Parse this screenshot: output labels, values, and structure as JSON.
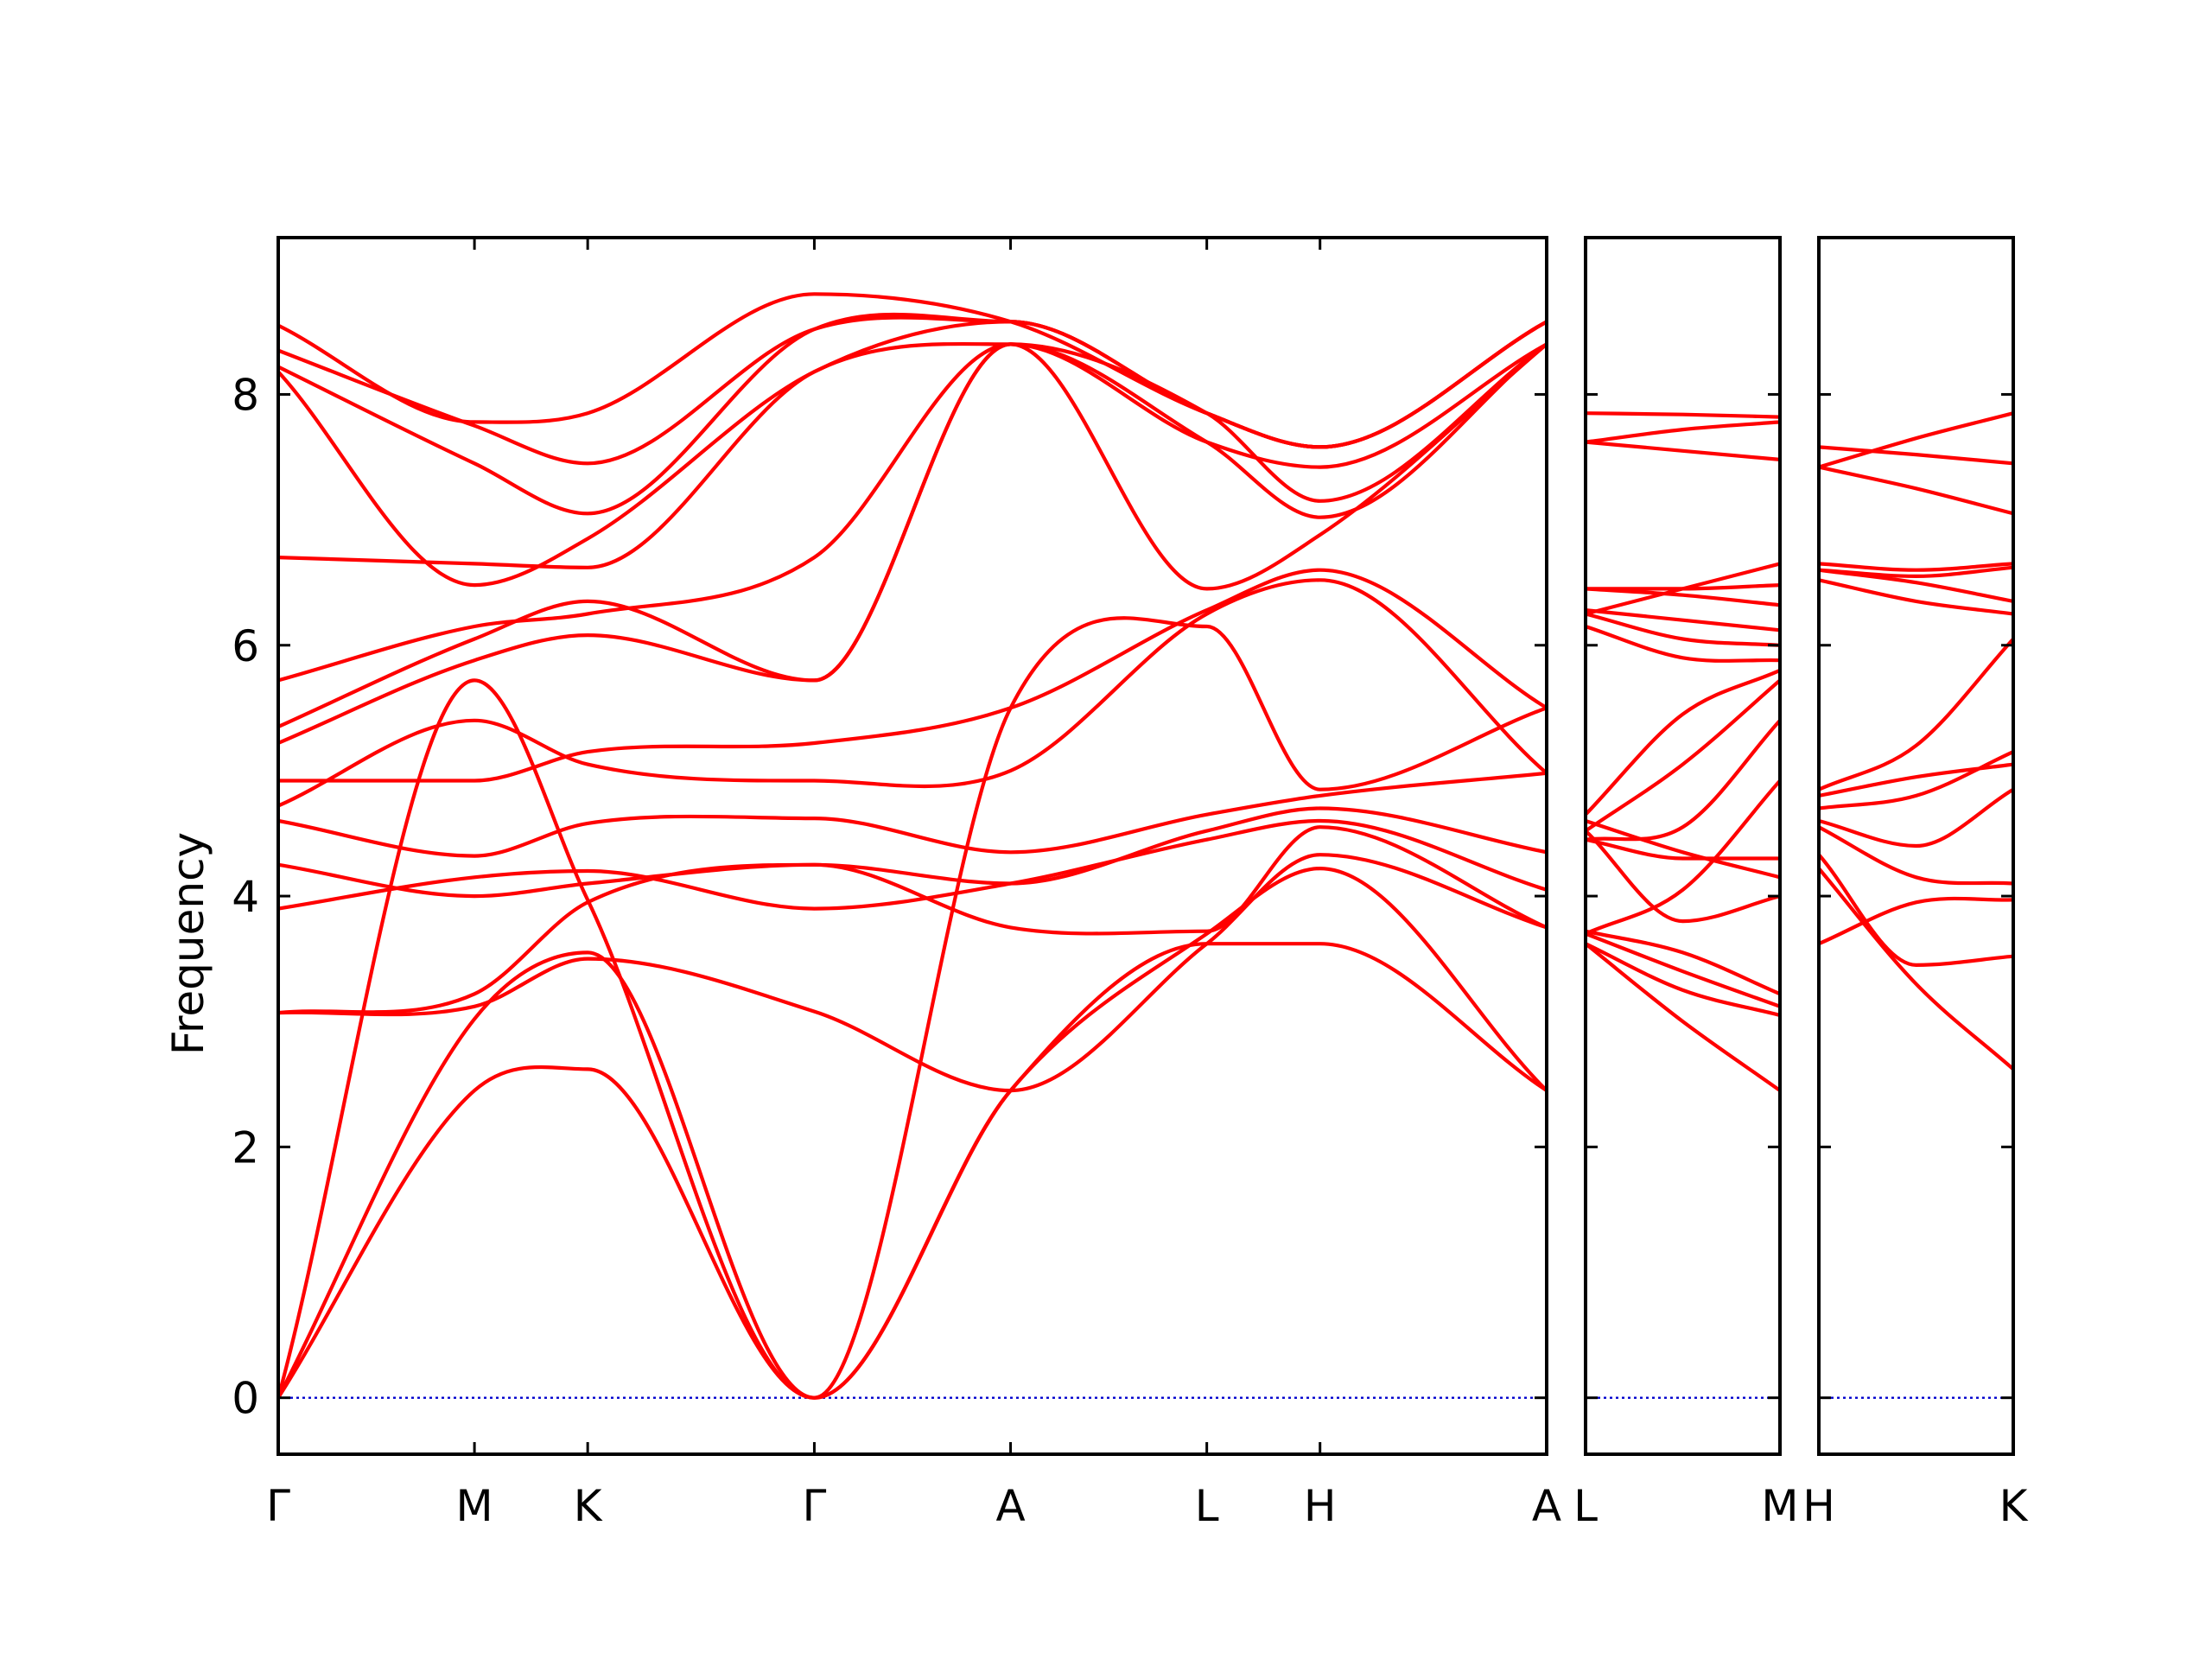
{
  "chart_data": {
    "type": "line",
    "ylabel": "Frequency",
    "ylim": [
      -0.45,
      9.25
    ],
    "yticks": [
      0,
      2,
      4,
      6,
      8
    ],
    "grid": false,
    "line_color": "#ff0000",
    "zero_line_color": "#0000cc",
    "panels": [
      {
        "xticks": [
          {
            "x": 0,
            "label": "Γ"
          },
          {
            "x": 1,
            "label": "M"
          },
          {
            "x": 1.577,
            "label": "K"
          },
          {
            "x": 2.732,
            "label": "Γ"
          },
          {
            "x": 3.732,
            "label": "A"
          },
          {
            "x": 4.732,
            "label": "L"
          },
          {
            "x": 5.309,
            "label": "H"
          },
          {
            "x": 6.464,
            "label": "A"
          }
        ],
        "xlim": [
          0,
          6.464
        ],
        "bands": [
          {
            "x": [
              0,
              1,
              1.577,
              2.732,
              3.732,
              4.732,
              5.309,
              6.464
            ],
            "y": [
              0,
              2.45,
              2.62,
              0,
              2.45,
              3.62,
              3.62,
              2.45
            ]
          },
          {
            "x": [
              0,
              1,
              1.577,
              2.732,
              3.732,
              4.732,
              5.309,
              6.464
            ],
            "y": [
              0,
              3.02,
              3.55,
              0,
              2.45,
              3.7,
              4.22,
              2.45
            ]
          },
          {
            "x": [
              0,
              1,
              1.577,
              2.732,
              3.732,
              4.732,
              5.309,
              6.464
            ],
            "y": [
              0,
              5.72,
              3.97,
              0,
              5.5,
              6.15,
              4.85,
              5.5
            ]
          },
          {
            "x": [
              0,
              1,
              1.577,
              2.732,
              3.732,
              4.732,
              5.309,
              6.464
            ],
            "y": [
              3.07,
              3.12,
              3.5,
              3.08,
              2.45,
              3.62,
              4.33,
              3.75
            ]
          },
          {
            "x": [
              0,
              1,
              1.577,
              2.732,
              3.732,
              4.732,
              5.309,
              6.464
            ],
            "y": [
              3.07,
              3.22,
              3.95,
              4.25,
              3.75,
              3.72,
              4.55,
              3.75
            ]
          },
          {
            "x": [
              0,
              1,
              1.577,
              2.732,
              3.732,
              4.732,
              5.309,
              6.464
            ],
            "y": [
              3.9,
              4.15,
              4.2,
              3.9,
              4.1,
              4.45,
              4.6,
              4.05
            ]
          },
          {
            "x": [
              0,
              1,
              1.577,
              2.732,
              3.732,
              4.732,
              5.309,
              6.464
            ],
            "y": [
              4.25,
              4.0,
              4.1,
              4.25,
              4.1,
              4.52,
              4.7,
              4.35
            ]
          },
          {
            "x": [
              0,
              1,
              1.577,
              2.732,
              3.732,
              4.732,
              5.309,
              6.464
            ],
            "y": [
              4.6,
              4.32,
              4.58,
              4.62,
              4.35,
              4.65,
              4.8,
              4.98
            ]
          },
          {
            "x": [
              0,
              1,
              1.577,
              2.732,
              3.732,
              4.732,
              5.309,
              6.464
            ],
            "y": [
              4.72,
              5.4,
              5.05,
              4.92,
              5.0,
              6.25,
              6.52,
              4.98
            ]
          },
          {
            "x": [
              0,
              1,
              1.577,
              2.732,
              3.732,
              4.732,
              5.309,
              6.464
            ],
            "y": [
              4.92,
              4.92,
              5.15,
              5.22,
              5.5,
              6.28,
              6.6,
              5.5
            ]
          },
          {
            "x": [
              0,
              1,
              1.577,
              2.732,
              3.732,
              4.732,
              5.309,
              6.464
            ],
            "y": [
              5.22,
              5.88,
              6.08,
              5.72,
              8.4,
              6.45,
              6.88,
              8.4
            ]
          },
          {
            "x": [
              0,
              1,
              1.577,
              2.732,
              3.732,
              4.732,
              5.309,
              6.464
            ],
            "y": [
              5.35,
              6.05,
              6.35,
              5.72,
              8.4,
              7.62,
              7.02,
              8.4
            ]
          },
          {
            "x": [
              0,
              1,
              1.577,
              2.732,
              3.732,
              4.732,
              5.309,
              6.464
            ],
            "y": [
              5.72,
              6.15,
              6.25,
              6.7,
              8.4,
              7.62,
              7.42,
              8.4
            ]
          },
          {
            "x": [
              0,
              1,
              1.577,
              2.732,
              3.732,
              4.732,
              5.309,
              6.464
            ],
            "y": [
              6.7,
              6.65,
              6.62,
              8.18,
              8.4,
              7.85,
              7.15,
              8.4
            ]
          },
          {
            "x": [
              0,
              1,
              1.577,
              2.732,
              3.732,
              4.732,
              5.309,
              6.464
            ],
            "y": [
              8.18,
              6.48,
              6.85,
              8.18,
              8.58,
              7.85,
              7.58,
              8.58
            ]
          },
          {
            "x": [
              0,
              1,
              1.577,
              2.732,
              3.732,
              4.732,
              5.309,
              6.464
            ],
            "y": [
              8.22,
              7.45,
              7.05,
              8.52,
              8.58,
              7.85,
              7.58,
              8.58
            ]
          },
          {
            "x": [
              0,
              1,
              1.577,
              2.732,
              3.732,
              4.732,
              5.309,
              6.464
            ],
            "y": [
              8.35,
              7.75,
              7.45,
              8.52,
              8.58,
              7.85,
              7.58,
              8.58
            ]
          },
          {
            "x": [
              0,
              1,
              1.577,
              2.732,
              3.732,
              4.732,
              5.309,
              6.464
            ],
            "y": [
              8.55,
              7.78,
              7.85,
              8.8,
              8.58,
              7.85,
              7.58,
              8.58
            ]
          }
        ]
      },
      {
        "xticks": [
          {
            "x": 0,
            "label": "L"
          },
          {
            "x": 1,
            "label": "M"
          }
        ],
        "xlim": [
          0,
          1
        ],
        "bands": [
          {
            "x": [
              0,
              0.5,
              1
            ],
            "y": [
              3.62,
              3.0,
              2.45
            ]
          },
          {
            "x": [
              0,
              0.5,
              1
            ],
            "y": [
              3.62,
              3.25,
              3.05
            ]
          },
          {
            "x": [
              0,
              0.5,
              1
            ],
            "y": [
              3.7,
              3.4,
              3.12
            ]
          },
          {
            "x": [
              0,
              0.5,
              1
            ],
            "y": [
              3.72,
              3.55,
              3.22
            ]
          },
          {
            "x": [
              0,
              0.5,
              1
            ],
            "y": [
              4.45,
              4.3,
              4.3
            ]
          },
          {
            "x": [
              0,
              0.5,
              1
            ],
            "y": [
              4.52,
              3.8,
              4.0
            ]
          },
          {
            "x": [
              0,
              0.5,
              1
            ],
            "y": [
              4.6,
              4.35,
              4.15
            ]
          },
          {
            "x": [
              0,
              0.5,
              1
            ],
            "y": [
              3.7,
              4.05,
              4.92
            ]
          },
          {
            "x": [
              0,
              0.5,
              1
            ],
            "y": [
              4.45,
              4.55,
              5.4
            ]
          },
          {
            "x": [
              0,
              0.5,
              1
            ],
            "y": [
              4.52,
              5.05,
              5.72
            ]
          },
          {
            "x": [
              0,
              0.5,
              1
            ],
            "y": [
              4.65,
              5.45,
              5.8
            ]
          },
          {
            "x": [
              0,
              0.5,
              1
            ],
            "y": [
              6.15,
              5.9,
              5.88
            ]
          },
          {
            "x": [
              0,
              0.5,
              1
            ],
            "y": [
              6.25,
              6.05,
              6.0
            ]
          },
          {
            "x": [
              0,
              0.5,
              1
            ],
            "y": [
              6.28,
              6.2,
              6.12
            ]
          },
          {
            "x": [
              0,
              0.5,
              1
            ],
            "y": [
              6.45,
              6.4,
              6.32
            ]
          },
          {
            "x": [
              0,
              0.5,
              1
            ],
            "y": [
              6.45,
              6.45,
              6.48
            ]
          },
          {
            "x": [
              0,
              0.5,
              1
            ],
            "y": [
              6.25,
              6.45,
              6.65
            ]
          },
          {
            "x": [
              0,
              0.5,
              1
            ],
            "y": [
              7.62,
              7.55,
              7.48
            ]
          },
          {
            "x": [
              0,
              0.5,
              1
            ],
            "y": [
              7.62,
              7.72,
              7.78
            ]
          },
          {
            "x": [
              0,
              0.5,
              1
            ],
            "y": [
              7.85,
              7.84,
              7.82
            ]
          }
        ]
      },
      {
        "xticks": [
          {
            "x": 0,
            "label": "H"
          },
          {
            "x": 1,
            "label": "K"
          }
        ],
        "xlim": [
          0,
          1
        ],
        "bands": [
          {
            "x": [
              0,
              0.5,
              1
            ],
            "y": [
              4.22,
              3.3,
              2.62
            ]
          },
          {
            "x": [
              0,
              0.5,
              1
            ],
            "y": [
              4.33,
              3.45,
              3.52
            ]
          },
          {
            "x": [
              0,
              0.5,
              1
            ],
            "y": [
              3.62,
              3.95,
              3.97
            ]
          },
          {
            "x": [
              0,
              0.5,
              1
            ],
            "y": [
              4.55,
              4.15,
              4.1
            ]
          },
          {
            "x": [
              0,
              0.5,
              1
            ],
            "y": [
              4.6,
              4.4,
              4.85
            ]
          },
          {
            "x": [
              0,
              0.5,
              1
            ],
            "y": [
              4.7,
              4.8,
              5.15
            ]
          },
          {
            "x": [
              0,
              0.5,
              1
            ],
            "y": [
              4.8,
              4.95,
              5.05
            ]
          },
          {
            "x": [
              0,
              0.5,
              1
            ],
            "y": [
              4.85,
              5.2,
              6.05
            ]
          },
          {
            "x": [
              0,
              0.5,
              1
            ],
            "y": [
              6.52,
              6.35,
              6.25
            ]
          },
          {
            "x": [
              0,
              0.5,
              1
            ],
            "y": [
              6.6,
              6.5,
              6.35
            ]
          },
          {
            "x": [
              0,
              0.5,
              1
            ],
            "y": [
              6.6,
              6.55,
              6.62
            ]
          },
          {
            "x": [
              0,
              0.5,
              1
            ],
            "y": [
              6.65,
              6.6,
              6.65
            ]
          },
          {
            "x": [
              0,
              0.5,
              1
            ],
            "y": [
              7.42,
              7.25,
              7.05
            ]
          },
          {
            "x": [
              0,
              0.5,
              1
            ],
            "y": [
              7.42,
              7.65,
              7.85
            ]
          },
          {
            "x": [
              0,
              0.5,
              1
            ],
            "y": [
              7.58,
              7.52,
              7.45
            ]
          }
        ]
      }
    ]
  }
}
